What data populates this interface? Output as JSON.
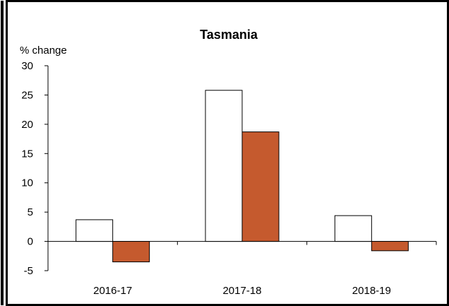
{
  "chart_data": {
    "type": "bar",
    "title": "Tasmania",
    "ylabel": "% change",
    "xlabel": "",
    "categories": [
      "2016-17",
      "2017-18",
      "2018-19"
    ],
    "series": [
      {
        "values": [
          3.7,
          25.8,
          4.4
        ],
        "color": "#ffffff"
      },
      {
        "values": [
          -3.5,
          18.7,
          -1.6
        ],
        "color": "#c55a2e"
      }
    ],
    "ylim": [
      -5,
      30
    ],
    "yticks": [
      30,
      25,
      20,
      15,
      10,
      5,
      0,
      -5
    ],
    "grid": false,
    "legend": "none"
  }
}
